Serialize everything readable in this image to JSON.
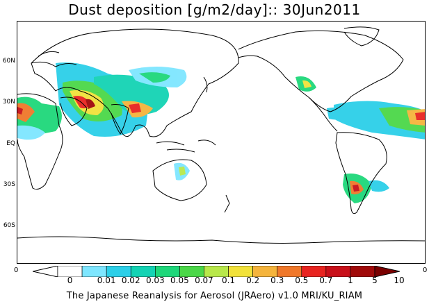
{
  "title": "Dust deposition [g/m2/day]:: 30Jun2011",
  "footer": "The Japanese Reanalysis for Aerosol (JRAero) v1.0 MRI/KU_RIAM",
  "axis": {
    "lat_labels": [
      "60N",
      "30N",
      "EQ",
      "30S",
      "60S"
    ],
    "left_zero": "0",
    "right_zero": "0"
  },
  "colorbar": {
    "labels": [
      "0",
      "0.01",
      "0.02",
      "0.03",
      "0.05",
      "0.07",
      "0.1",
      "0.2",
      "0.3",
      "0.5",
      "0.7",
      "1",
      "5",
      "10"
    ],
    "colors": [
      "#ffffff",
      "#ffffff",
      "#7ee6ff",
      "#2ccfe8",
      "#14d3b4",
      "#1ed77a",
      "#4bd748",
      "#b8e84a",
      "#f2e23a",
      "#f5b43c",
      "#f0782a",
      "#e82420",
      "#c8101a",
      "#a00a0a",
      "#7a0000"
    ]
  },
  "colors": {
    "land_outline": "#000000",
    "background": "#ffffff"
  }
}
